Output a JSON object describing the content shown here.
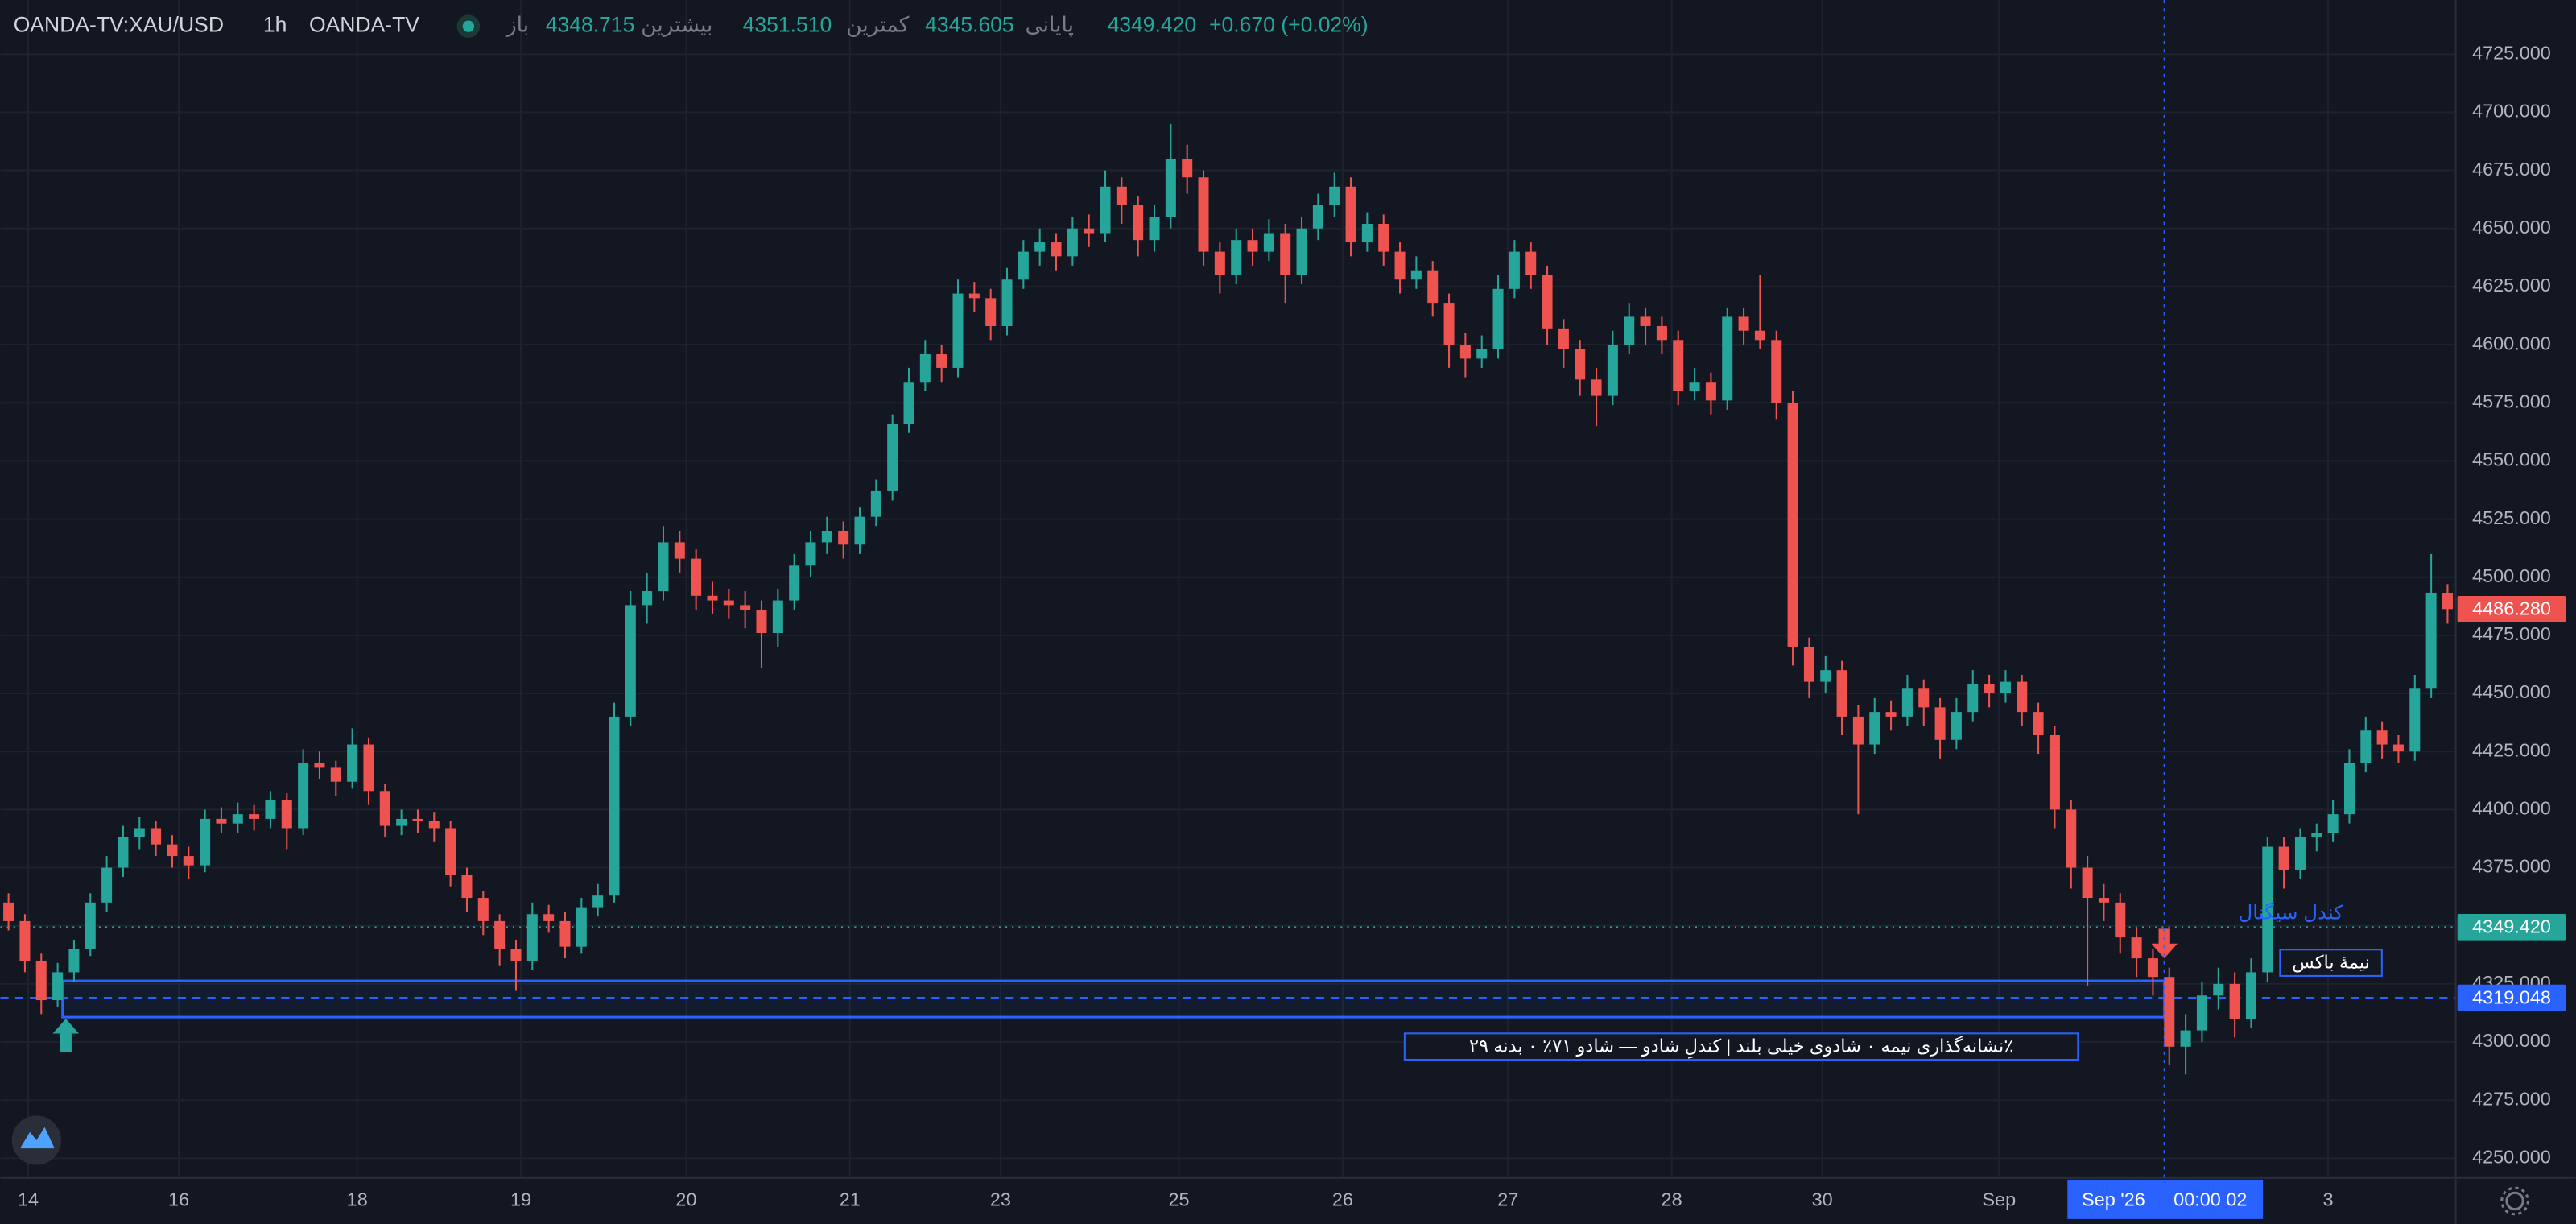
{
  "header": {
    "symbol": "OANDA-TV:XAU/USD",
    "interval": "1h",
    "source": "OANDA-TV",
    "open_label": "باز",
    "open": "4348.715",
    "high_label": "بیشترین",
    "high": "4351.510",
    "low_label": "کمترین",
    "low": "4345.605",
    "close_label": "پایانی",
    "close": "4349.420",
    "change": "+0.670 (+0.02%)"
  },
  "chart_data": {
    "type": "candlestick",
    "up_color": "#26a69a",
    "down_color": "#ef5350",
    "grid": true,
    "ylim": [
      4241.5,
      4748.3
    ],
    "yticks": [
      {
        "value": 4250,
        "label": "4250.000"
      },
      {
        "value": 4275,
        "label": "4275.000"
      },
      {
        "value": 4300,
        "label": "4300.000"
      },
      {
        "value": 4325,
        "label": "4325.000"
      },
      {
        "value": 4350,
        "label": "4350.000"
      },
      {
        "value": 4375,
        "label": "4375.000"
      },
      {
        "value": 4400,
        "label": "4400.000"
      },
      {
        "value": 4425,
        "label": "4425.000"
      },
      {
        "value": 4450,
        "label": "4450.000"
      },
      {
        "value": 4475,
        "label": "4475.000"
      },
      {
        "value": 4500,
        "label": "4500.000"
      },
      {
        "value": 4525,
        "label": "4525.000"
      },
      {
        "value": 4550,
        "label": "4550.000"
      },
      {
        "value": 4575,
        "label": "4575.000"
      },
      {
        "value": 4600,
        "label": "4600.000"
      },
      {
        "value": 4625,
        "label": "4625.000"
      },
      {
        "value": 4650,
        "label": "4650.000"
      },
      {
        "value": 4675,
        "label": "4675.000"
      },
      {
        "value": 4700,
        "label": "4700.000"
      },
      {
        "value": 4725,
        "label": "4725.000"
      }
    ],
    "xlim": [
      -0.5,
      149.5
    ],
    "xticks": [
      {
        "value": 1.2,
        "label": "14"
      },
      {
        "value": 10.4,
        "label": "16"
      },
      {
        "value": 21.3,
        "label": "18"
      },
      {
        "value": 31.3,
        "label": "19"
      },
      {
        "value": 41.4,
        "label": "20"
      },
      {
        "value": 51.4,
        "label": "21"
      },
      {
        "value": 60.6,
        "label": "23"
      },
      {
        "value": 71.5,
        "label": "25"
      },
      {
        "value": 81.5,
        "label": "26"
      },
      {
        "value": 91.6,
        "label": "27"
      },
      {
        "value": 101.6,
        "label": "28"
      },
      {
        "value": 110.8,
        "label": "30"
      },
      {
        "value": 121.6,
        "label": "Sep"
      },
      {
        "value": 141.7,
        "label": "3"
      }
    ],
    "ohlc": [
      [
        4360,
        4364,
        4348,
        4352
      ],
      [
        4352,
        4355,
        4330,
        4335
      ],
      [
        4335,
        4338,
        4312,
        4318
      ],
      [
        4318,
        4334,
        4315,
        4330
      ],
      [
        4330,
        4344,
        4326,
        4340
      ],
      [
        4340,
        4364,
        4337,
        4360
      ],
      [
        4360,
        4380,
        4356,
        4375
      ],
      [
        4375,
        4393,
        4371,
        4388
      ],
      [
        4388,
        4397,
        4383,
        4392
      ],
      [
        4392,
        4395,
        4380,
        4385
      ],
      [
        4385,
        4389,
        4375,
        4380
      ],
      [
        4380,
        4384,
        4370,
        4376
      ],
      [
        4376,
        4400,
        4373,
        4396
      ],
      [
        4396,
        4401,
        4390,
        4394
      ],
      [
        4394,
        4403,
        4390,
        4398
      ],
      [
        4398,
        4402,
        4391,
        4396
      ],
      [
        4396,
        4408,
        4392,
        4404
      ],
      [
        4404,
        4407,
        4383,
        4392
      ],
      [
        4392,
        4426,
        4389,
        4420
      ],
      [
        4420,
        4425,
        4413,
        4418
      ],
      [
        4418,
        4421,
        4406,
        4412
      ],
      [
        4412,
        4435,
        4409,
        4428
      ],
      [
        4428,
        4431,
        4402,
        4408
      ],
      [
        4408,
        4411,
        4388,
        4393
      ],
      [
        4393,
        4400,
        4389,
        4396
      ],
      [
        4396,
        4400,
        4390,
        4395
      ],
      [
        4395,
        4399,
        4386,
        4392
      ],
      [
        4392,
        4395,
        4367,
        4372
      ],
      [
        4372,
        4375,
        4356,
        4362
      ],
      [
        4362,
        4365,
        4346,
        4352
      ],
      [
        4352,
        4355,
        4333,
        4340
      ],
      [
        4340,
        4344,
        4322,
        4335
      ],
      [
        4335,
        4360,
        4331,
        4355
      ],
      [
        4355,
        4359,
        4347,
        4352
      ],
      [
        4352,
        4356,
        4336,
        4341
      ],
      [
        4341,
        4362,
        4338,
        4358
      ],
      [
        4358,
        4368,
        4354,
        4363
      ],
      [
        4363,
        4446,
        4360,
        4440
      ],
      [
        4440,
        4494,
        4436,
        4488
      ],
      [
        4488,
        4502,
        4480,
        4494
      ],
      [
        4494,
        4522,
        4490,
        4515
      ],
      [
        4515,
        4520,
        4502,
        4508
      ],
      [
        4508,
        4512,
        4486,
        4492
      ],
      [
        4492,
        4498,
        4484,
        4490
      ],
      [
        4490,
        4495,
        4482,
        4488
      ],
      [
        4488,
        4494,
        4478,
        4486
      ],
      [
        4486,
        4490,
        4461,
        4476
      ],
      [
        4476,
        4495,
        4470,
        4490
      ],
      [
        4490,
        4510,
        4486,
        4505
      ],
      [
        4505,
        4520,
        4500,
        4515
      ],
      [
        4515,
        4526,
        4510,
        4520
      ],
      [
        4520,
        4524,
        4508,
        4514
      ],
      [
        4514,
        4530,
        4510,
        4526
      ],
      [
        4526,
        4542,
        4522,
        4537
      ],
      [
        4537,
        4570,
        4533,
        4566
      ],
      [
        4566,
        4590,
        4562,
        4584
      ],
      [
        4584,
        4602,
        4580,
        4596
      ],
      [
        4596,
        4600,
        4584,
        4590
      ],
      [
        4590,
        4628,
        4586,
        4622
      ],
      [
        4622,
        4627,
        4614,
        4620
      ],
      [
        4620,
        4624,
        4602,
        4608
      ],
      [
        4608,
        4633,
        4604,
        4628
      ],
      [
        4628,
        4645,
        4624,
        4640
      ],
      [
        4640,
        4650,
        4634,
        4644
      ],
      [
        4644,
        4648,
        4632,
        4638
      ],
      [
        4638,
        4655,
        4634,
        4650
      ],
      [
        4650,
        4656,
        4642,
        4648
      ],
      [
        4648,
        4675,
        4644,
        4668
      ],
      [
        4668,
        4672,
        4652,
        4660
      ],
      [
        4660,
        4664,
        4638,
        4645
      ],
      [
        4645,
        4660,
        4640,
        4655
      ],
      [
        4655,
        4695,
        4650,
        4680
      ],
      [
        4680,
        4686,
        4665,
        4672
      ],
      [
        4672,
        4675,
        4634,
        4640
      ],
      [
        4640,
        4644,
        4622,
        4630
      ],
      [
        4630,
        4650,
        4626,
        4645
      ],
      [
        4645,
        4650,
        4634,
        4640
      ],
      [
        4640,
        4654,
        4636,
        4648
      ],
      [
        4648,
        4652,
        4618,
        4630
      ],
      [
        4630,
        4655,
        4626,
        4650
      ],
      [
        4650,
        4665,
        4645,
        4660
      ],
      [
        4660,
        4674,
        4655,
        4668
      ],
      [
        4668,
        4672,
        4638,
        4644
      ],
      [
        4644,
        4657,
        4640,
        4652
      ],
      [
        4652,
        4656,
        4634,
        4640
      ],
      [
        4640,
        4644,
        4622,
        4628
      ],
      [
        4628,
        4638,
        4624,
        4632
      ],
      [
        4632,
        4636,
        4612,
        4618
      ],
      [
        4618,
        4622,
        4590,
        4600
      ],
      [
        4600,
        4605,
        4586,
        4594
      ],
      [
        4594,
        4604,
        4590,
        4598
      ],
      [
        4598,
        4630,
        4594,
        4624
      ],
      [
        4624,
        4645,
        4620,
        4640
      ],
      [
        4640,
        4644,
        4624,
        4630
      ],
      [
        4630,
        4634,
        4600,
        4607
      ],
      [
        4607,
        4611,
        4590,
        4598
      ],
      [
        4598,
        4602,
        4578,
        4585
      ],
      [
        4585,
        4590,
        4565,
        4578
      ],
      [
        4578,
        4606,
        4574,
        4600
      ],
      [
        4600,
        4618,
        4596,
        4612
      ],
      [
        4612,
        4616,
        4600,
        4608
      ],
      [
        4608,
        4612,
        4596,
        4602
      ],
      [
        4602,
        4606,
        4574,
        4580
      ],
      [
        4580,
        4590,
        4576,
        4584
      ],
      [
        4584,
        4588,
        4570,
        4576
      ],
      [
        4576,
        4616,
        4572,
        4612
      ],
      [
        4612,
        4616,
        4600,
        4606
      ],
      [
        4606,
        4630,
        4598,
        4602
      ],
      [
        4602,
        4606,
        4568,
        4575
      ],
      [
        4575,
        4580,
        4462,
        4470
      ],
      [
        4470,
        4474,
        4448,
        4455
      ],
      [
        4455,
        4466,
        4450,
        4460
      ],
      [
        4460,
        4464,
        4432,
        4440
      ],
      [
        4440,
        4445,
        4398,
        4428
      ],
      [
        4428,
        4448,
        4424,
        4442
      ],
      [
        4442,
        4447,
        4434,
        4440
      ],
      [
        4440,
        4458,
        4436,
        4452
      ],
      [
        4452,
        4456,
        4436,
        4444
      ],
      [
        4444,
        4448,
        4422,
        4430
      ],
      [
        4430,
        4448,
        4426,
        4442
      ],
      [
        4442,
        4460,
        4438,
        4454
      ],
      [
        4454,
        4458,
        4444,
        4450
      ],
      [
        4450,
        4460,
        4446,
        4455
      ],
      [
        4455,
        4458,
        4436,
        4442
      ],
      [
        4442,
        4446,
        4424,
        4432
      ],
      [
        4432,
        4436,
        4392,
        4400
      ],
      [
        4400,
        4404,
        4366,
        4375
      ],
      [
        4375,
        4380,
        4324,
        4362
      ],
      [
        4362,
        4368,
        4352,
        4360
      ],
      [
        4360,
        4364,
        4338,
        4345
      ],
      [
        4345,
        4349,
        4328,
        4336
      ],
      [
        4336,
        4340,
        4320,
        4328
      ],
      [
        4328,
        4332,
        4290,
        4298
      ],
      [
        4298,
        4312,
        4286,
        4305
      ],
      [
        4305,
        4326,
        4300,
        4320
      ],
      [
        4320,
        4332,
        4314,
        4325
      ],
      [
        4325,
        4330,
        4302,
        4310
      ],
      [
        4310,
        4336,
        4306,
        4330
      ],
      [
        4330,
        4388,
        4326,
        4384
      ],
      [
        4384,
        4388,
        4366,
        4374
      ],
      [
        4374,
        4392,
        4370,
        4388
      ],
      [
        4388,
        4394,
        4382,
        4390
      ],
      [
        4390,
        4404,
        4386,
        4398
      ],
      [
        4398,
        4426,
        4394,
        4420
      ],
      [
        4420,
        4440,
        4416,
        4434
      ],
      [
        4434,
        4438,
        4422,
        4428
      ],
      [
        4428,
        4432,
        4420,
        4425
      ],
      [
        4425,
        4458,
        4421,
        4452
      ],
      [
        4452,
        4510,
        4448,
        4493
      ],
      [
        4493,
        4497,
        4480,
        4486.28
      ]
    ],
    "last_price": {
      "value": 4486.28,
      "label": "4486.280",
      "color": "#ef5350"
    },
    "close_line": {
      "value": 4349.42,
      "label": "4349.420",
      "color": "#26a69a"
    },
    "crosshair": {
      "index": 131.7,
      "date_label": "Sep '26",
      "time_label": "00:00 02",
      "color": "#2962ff"
    },
    "annotations": {
      "signal_label": "کندل سیگنال",
      "box_mid_label": "نیمهٔ باکس",
      "note": "٪نشانه‌گذاری نیمه ۰ شادوی خیلی بلند | کندلِ شادو — شادو ۷۱٪ ۰ بدنه ۲۹",
      "zone": {
        "start": 3.3,
        "end": 131.7,
        "top": 4326.3,
        "bottom": 4310.7,
        "mid": 4319.048,
        "color": "#2962ff"
      },
      "up_arrow": {
        "index": 3.5,
        "price": 4310
      },
      "down_arrow": {
        "index": 131.7,
        "price": 4336
      }
    }
  }
}
